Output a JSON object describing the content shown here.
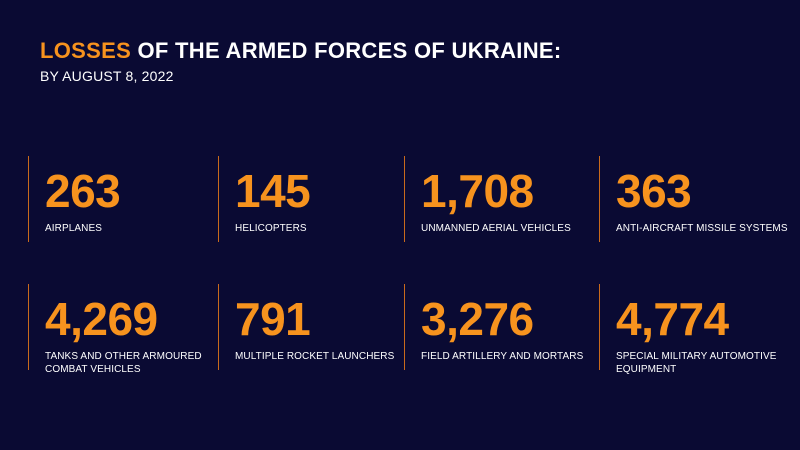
{
  "header": {
    "title_accent": "LOSSES",
    "title_rest": " OF THE ARMED FORCES OF UKRAINE:",
    "subtitle": "BY AUGUST 8, 2022"
  },
  "colors": {
    "background": "#0a0a33",
    "accent": "#f7931e",
    "divider": "#c86a1c",
    "text": "#ffffff"
  },
  "stats": [
    {
      "value": "263",
      "label": "AIRPLANES"
    },
    {
      "value": "145",
      "label": "HELICOPTERS"
    },
    {
      "value": "1,708",
      "label": "UNMANNED AERIAL VEHICLES"
    },
    {
      "value": "363",
      "label": "ANTI-AIRCRAFT MISSILE SYSTEMS"
    },
    {
      "value": "4,269",
      "label": "TANKS AND OTHER ARMOURED COMBAT VEHICLES"
    },
    {
      "value": "791",
      "label": "MULTIPLE ROCKET LAUNCHERS"
    },
    {
      "value": "3,276",
      "label": "FIELD ARTILLERY AND MORTARS"
    },
    {
      "value": "4,774",
      "label": "SPECIAL MILITARY AUTOMOTIVE EQUIPMENT"
    }
  ]
}
